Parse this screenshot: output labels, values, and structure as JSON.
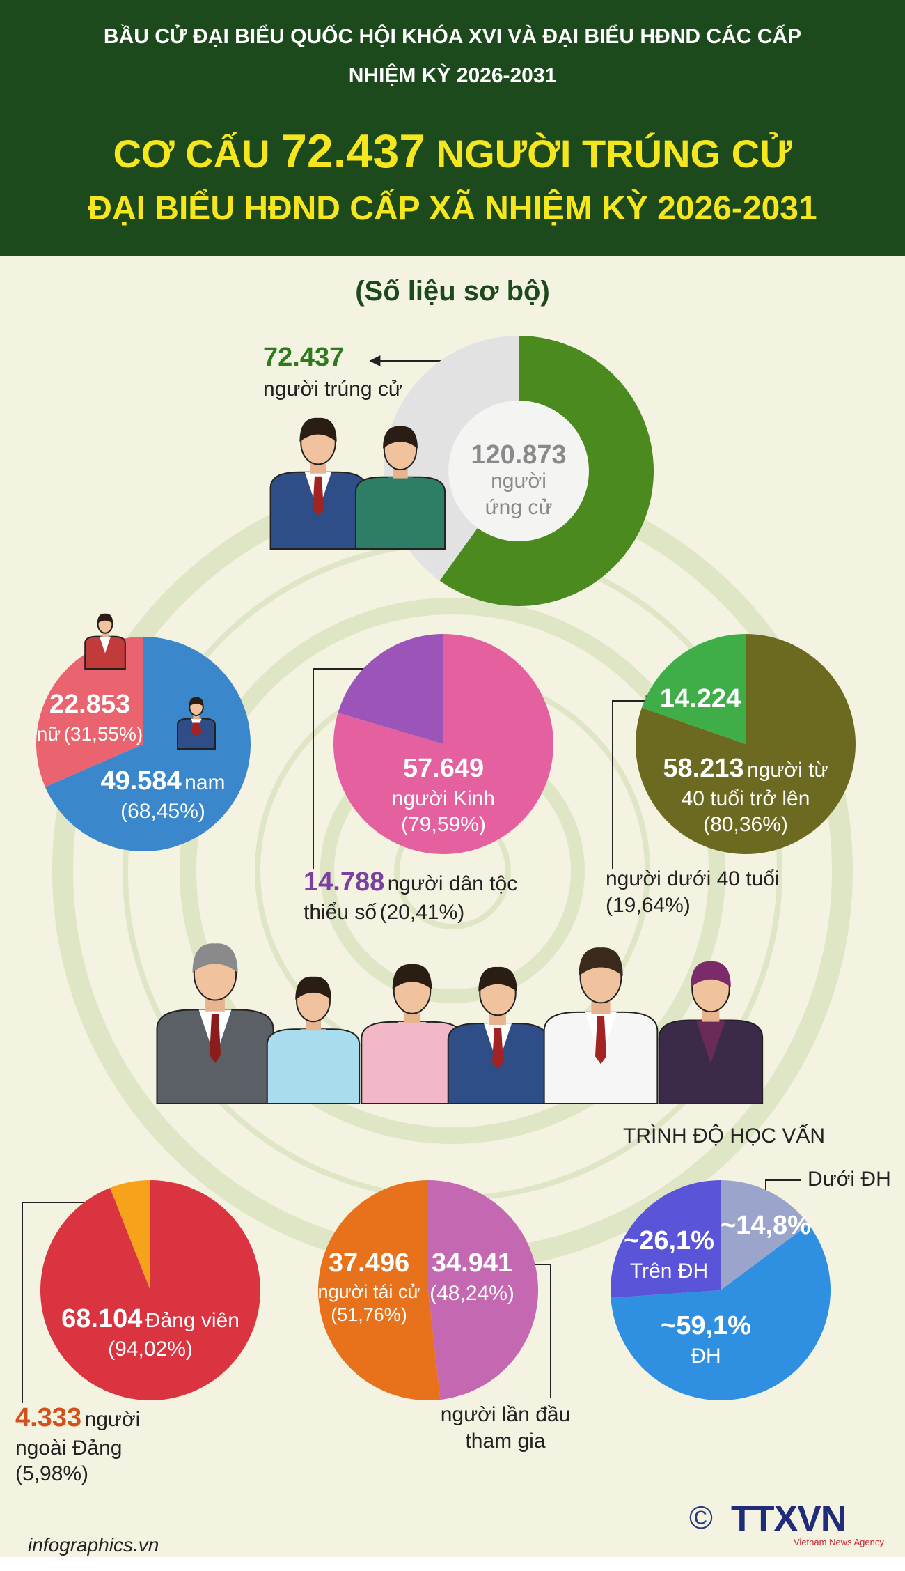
{
  "header": {
    "top_line1": "BẦU CỬ ĐẠI BIỂU QUỐC HỘI KHÓA XVI VÀ ĐẠI BIỂU HĐND CÁC CẤP",
    "top_line2": "NHIỆM KỲ 2026-2031",
    "title_prefix": "CƠ CẤU",
    "title_number": "72.437",
    "title_suffix": "NGƯỜI TRÚNG CỬ",
    "title_line2": "ĐẠI BIỂU HĐND CẤP XÃ NHIỆM KỲ 2026-2031"
  },
  "subtitle": "(Số liệu sơ bộ)",
  "chart_data": [
    {
      "type": "donut",
      "categories": [
        "người trúng cử"
      ],
      "values": [
        72437
      ],
      "value_labels": [
        "72.437"
      ],
      "colors": [
        "#4a8a1e"
      ],
      "total": 120873,
      "total_label": "120.873",
      "total_caption": "người ứng cử",
      "rest_color": "#e2e2e2"
    },
    {
      "type": "pie",
      "categories": [
        "nam",
        "nữ"
      ],
      "values": [
        49584,
        22853
      ],
      "value_labels": [
        "49.584",
        "22.853"
      ],
      "percents": [
        68.45,
        31.55
      ],
      "percent_labels": [
        "(68,45%)",
        "(31,55%)"
      ],
      "colors": [
        "#3a87cc",
        "#e9646e"
      ]
    },
    {
      "type": "pie",
      "categories": [
        "người Kinh",
        "người dân tộc thiểu số"
      ],
      "values": [
        57649,
        14788
      ],
      "value_labels": [
        "57.649",
        "14.788"
      ],
      "percents": [
        79.59,
        20.41
      ],
      "percent_labels": [
        "(79,59%)",
        "(20,41%)"
      ],
      "colors": [
        "#e4609f",
        "#9b55b8"
      ]
    },
    {
      "type": "pie",
      "categories": [
        "người từ 40 tuổi trở lên",
        "người dưới 40 tuổi"
      ],
      "values": [
        58213,
        14224
      ],
      "value_labels": [
        "58.213",
        "14.224"
      ],
      "percents": [
        80.36,
        19.64
      ],
      "percent_labels": [
        "(80,36%)",
        "(19,64%)"
      ],
      "colors": [
        "#6b6a20",
        "#3fae49"
      ]
    },
    {
      "type": "pie",
      "categories": [
        "Đảng viên",
        "người ngoài Đảng"
      ],
      "values": [
        68104,
        4333
      ],
      "value_labels": [
        "68.104",
        "4.333"
      ],
      "percents": [
        94.02,
        5.98
      ],
      "percent_labels": [
        "(94,02%)",
        "(5,98%)"
      ],
      "colors": [
        "#d9343f",
        "#f7a21b"
      ]
    },
    {
      "type": "pie",
      "categories": [
        "người lần đầu tham gia",
        "người tái cử"
      ],
      "values": [
        34941,
        37496
      ],
      "value_labels": [
        "34.941",
        "37.496"
      ],
      "percents": [
        48.24,
        51.76
      ],
      "percent_labels": [
        "(48,24%)",
        "(51,76%)"
      ],
      "colors": [
        "#c468b2",
        "#e8721c"
      ]
    },
    {
      "type": "pie",
      "title": "TRÌNH ĐỘ HỌC VẤN",
      "categories": [
        "Dưới ĐH",
        "ĐH",
        "Trên ĐH"
      ],
      "values": [
        14.8,
        59.1,
        26.1
      ],
      "value_labels": [
        "~14,8%",
        "~59,1%",
        "~26,1%"
      ],
      "colors": [
        "#9ba5cc",
        "#2f8fe0",
        "#5a55d8"
      ]
    }
  ],
  "footer": {
    "website": "infographics.vn",
    "copyright": "©",
    "agency": "TTXVN",
    "agency_en": "Vietnam News Agency"
  }
}
